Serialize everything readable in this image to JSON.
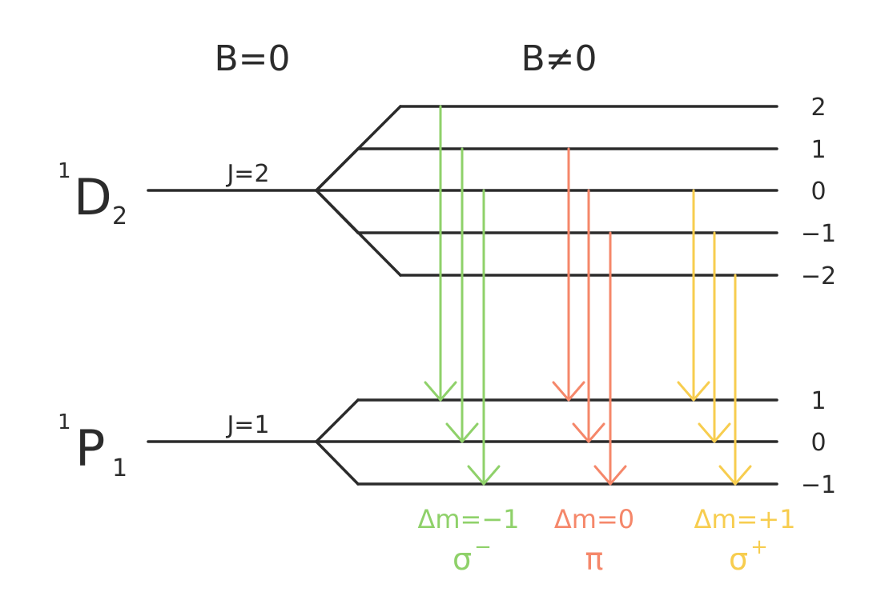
{
  "header": {
    "b_zero": "B=0",
    "b_nonzero": "B≠0"
  },
  "states": {
    "upper": {
      "term": "D",
      "multiplicity": "1",
      "j_index": "2",
      "j_label": "J=2",
      "sublevels": [
        "2",
        "1",
        "0",
        "−1",
        "−2"
      ]
    },
    "lower": {
      "term": "P",
      "multiplicity": "1",
      "j_index": "1",
      "j_label": "J=1",
      "sublevels": [
        "1",
        "0",
        "−1"
      ]
    }
  },
  "transitions": [
    {
      "key": "sigma-minus",
      "delta": "Δm=−1",
      "polarization": "σ",
      "sup": "−",
      "color": "#8fd16a",
      "arrows": [
        {
          "from": "2",
          "to": "1"
        },
        {
          "from": "1",
          "to": "0"
        },
        {
          "from": "0",
          "to": "−1"
        }
      ]
    },
    {
      "key": "pi",
      "delta": "Δm=0",
      "polarization": "π",
      "sup": "",
      "color": "#f5876a",
      "arrows": [
        {
          "from": "1",
          "to": "1"
        },
        {
          "from": "0",
          "to": "0"
        },
        {
          "from": "−1",
          "to": "−1"
        }
      ]
    },
    {
      "key": "sigma-plus",
      "delta": "Δm=+1",
      "polarization": "σ",
      "sup": "+",
      "color": "#f7cd4f",
      "arrows": [
        {
          "from": "0",
          "to": "1"
        },
        {
          "from": "−1",
          "to": "0"
        },
        {
          "from": "−2",
          "to": "−1"
        }
      ]
    }
  ]
}
